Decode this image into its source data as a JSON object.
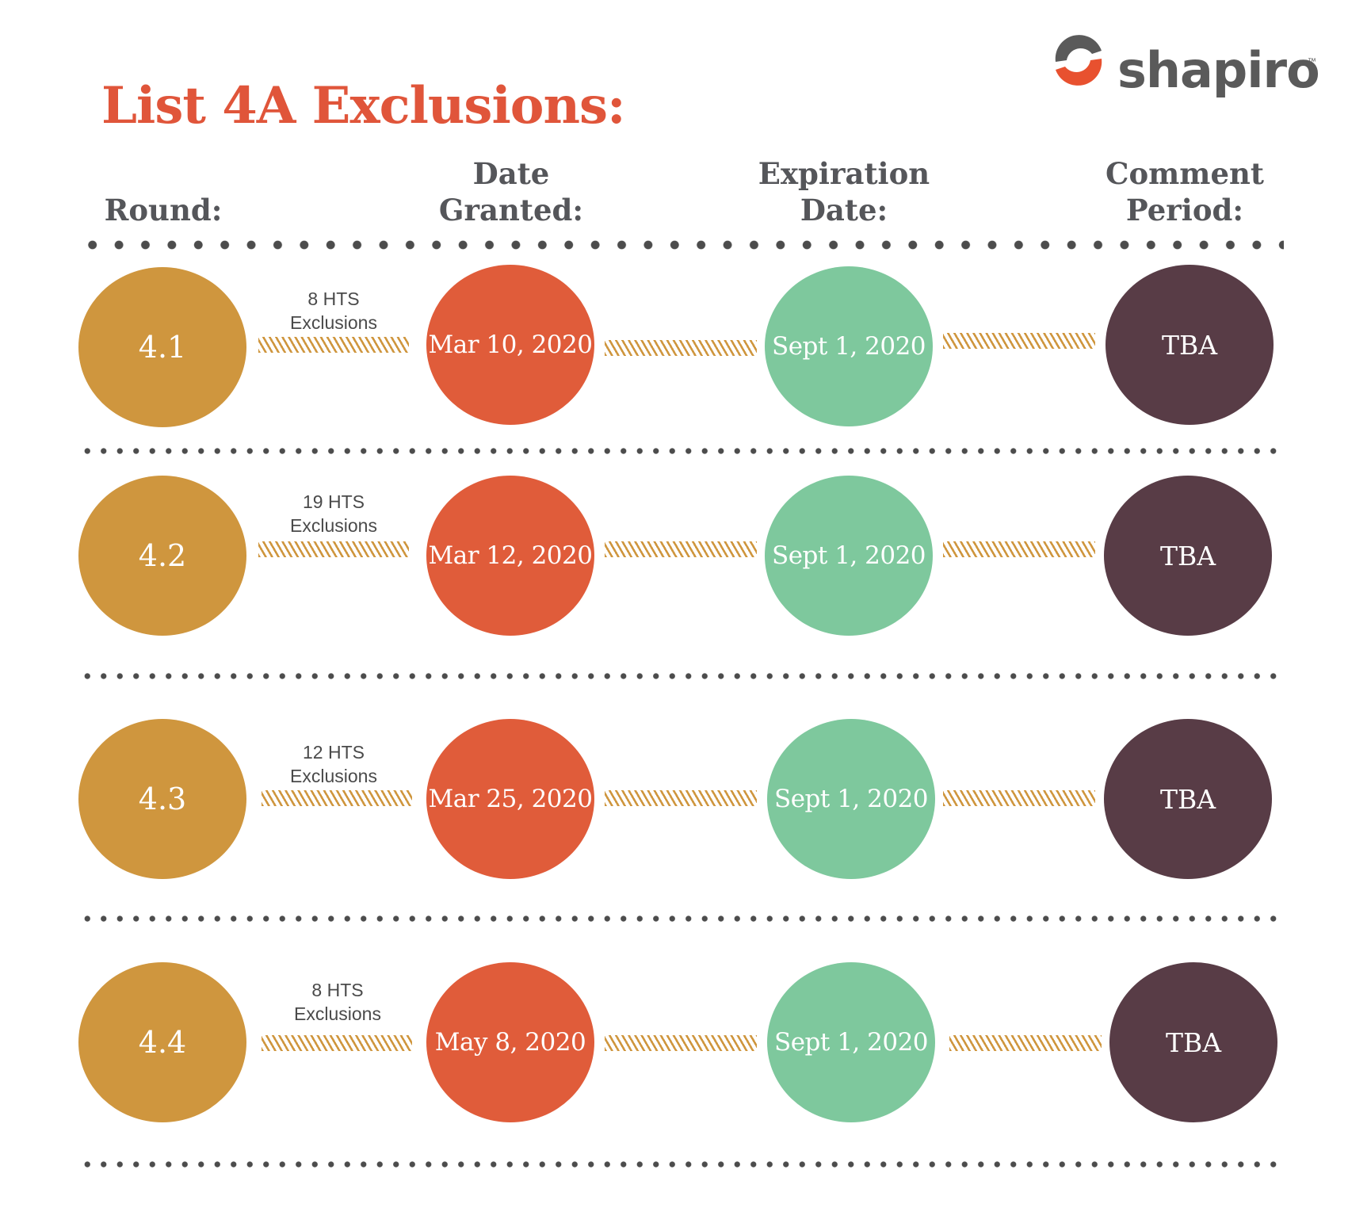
{
  "title": "List 4A Exclusions:",
  "logo": {
    "text": "shapiro",
    "tm": "™",
    "colors": {
      "orange": "#e8512f",
      "gray": "#5a5a5a"
    }
  },
  "columns": [
    {
      "line1": "",
      "line2": "Round:"
    },
    {
      "line1": "Date",
      "line2": "Granted:"
    },
    {
      "line1": "Expiration",
      "line2": "Date:"
    },
    {
      "line1": "Comment",
      "line2": "Period:"
    }
  ],
  "colors": {
    "round": "#cf963e",
    "granted": "#e05c3a",
    "expiration": "#7ec89d",
    "comment": "#583c46",
    "title": "#e0553a"
  },
  "rows": [
    {
      "round": "4.1",
      "hts_count": "8 HTS",
      "hts_label": "Exclusions",
      "date_granted": "Mar 10, 2020",
      "expiration": "Sept 1, 2020",
      "comment": "TBA"
    },
    {
      "round": "4.2",
      "hts_count": "19 HTS",
      "hts_label": "Exclusions",
      "date_granted": "Mar 12, 2020",
      "expiration": "Sept 1, 2020",
      "comment": "TBA"
    },
    {
      "round": "4.3",
      "hts_count": "12 HTS",
      "hts_label": "Exclusions",
      "date_granted": "Mar 25, 2020",
      "expiration": "Sept 1, 2020",
      "comment": "TBA"
    },
    {
      "round": "4.4",
      "hts_count": "8 HTS",
      "hts_label": "Exclusions",
      "date_granted": "May 8, 2020",
      "expiration": "Sept 1, 2020",
      "comment": "TBA"
    }
  ]
}
